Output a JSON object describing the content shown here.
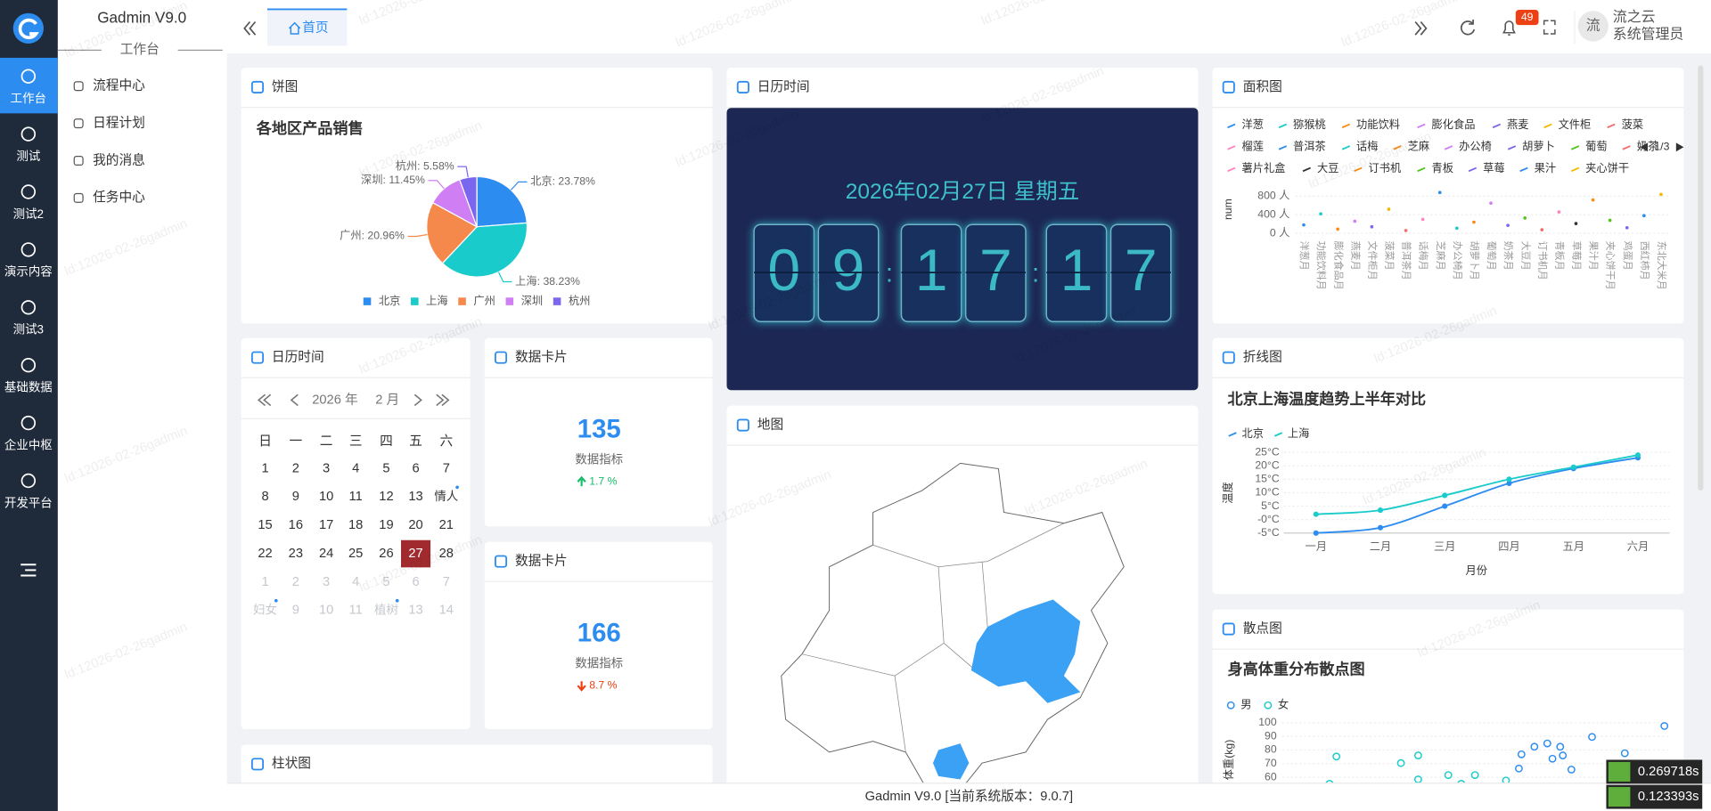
{
  "sidebar": {
    "nav": [
      "工作台",
      "测试",
      "测试2",
      "演示内容",
      "测试3",
      "基础数据",
      "企业中枢",
      "开发平台"
    ]
  },
  "menu": {
    "title": "Gadmin V9.0",
    "section": "工作台",
    "items": [
      "流程中心",
      "日程计划",
      "我的消息",
      "任务中心"
    ]
  },
  "header": {
    "tab": "首页",
    "badge": 49,
    "avatar": "流",
    "user_name": "流之云",
    "user_role": "系统管理员"
  },
  "watermark": "ld:12026-02-26gadmin",
  "panels": {
    "pie": "饼图",
    "clock": "日历时间",
    "area": "面积图",
    "calendar": "日历时间",
    "card1": "数据卡片",
    "card2": "数据卡片",
    "line": "折线图",
    "map": "地图",
    "scatter": "散点图",
    "bar": "柱状图"
  },
  "clock": {
    "date": "2026年02月27日 星期五",
    "digits": [
      "0",
      "9",
      "1",
      "7",
      "1",
      "7"
    ],
    "separator": ":"
  },
  "calendar": {
    "year": "2026 年",
    "month": "2 月",
    "weekdays": [
      "日",
      "一",
      "二",
      "三",
      "四",
      "五",
      "六"
    ],
    "weeks": [
      [
        "1",
        "2",
        "3",
        "4",
        "5",
        "6",
        "7"
      ],
      [
        "8",
        "9",
        "10",
        "11",
        "12",
        "13",
        "情人"
      ],
      [
        "15",
        "16",
        "17",
        "18",
        "19",
        "20",
        "21"
      ],
      [
        "22",
        "23",
        "24",
        "25",
        "26",
        "27",
        "28"
      ],
      [
        "1",
        "2",
        "3",
        "4",
        "5",
        "6",
        "7"
      ],
      [
        "妇女",
        "9",
        "10",
        "11",
        "植树",
        "13",
        "14"
      ]
    ]
  },
  "cards": [
    {
      "value": 135,
      "label": "数据指标",
      "change": "1.7 %",
      "trend": "up"
    },
    {
      "value": 166,
      "label": "数据指标",
      "change": "8.7 %",
      "trend": "down"
    }
  ],
  "chart_data": [
    {
      "type": "pie",
      "title": "各地区产品销售",
      "categories": [
        "北京",
        "上海",
        "广州",
        "深圳",
        "杭州"
      ],
      "values": [
        23.78,
        38.23,
        20.96,
        11.45,
        5.58
      ],
      "value_labels": [
        "北京: 23.78%",
        "上海: 38.23%",
        "广州: 20.96%",
        "深圳: 11.45%",
        "杭州: 5.58%"
      ],
      "colors": [
        "#2d8cf0",
        "#19cbcb",
        "#f5894b",
        "#d07ef3",
        "#7b67ee"
      ]
    },
    {
      "type": "area",
      "legend_page": "1/3",
      "ylabel": "num",
      "ylim": [
        0,
        900
      ],
      "yticks": [
        {
          "value": 0,
          "label": "0 人"
        },
        {
          "value": 400,
          "label": "400 人"
        },
        {
          "value": 800,
          "label": "800 人"
        }
      ],
      "grid": true,
      "categories": [
        "洋葱月",
        "功能饮料月",
        "膨化食品月",
        "燕麦月",
        "文件柜月",
        "菠菜月",
        "普洱茶月",
        "话梅月",
        "芝麻月",
        "办公椅月",
        "胡萝卜月",
        "葡萄月",
        "奶茶月",
        "大豆月",
        "订书机月",
        "青板月",
        "草莓月",
        "果汁月",
        "夹心饼干月",
        "鸡蛋月",
        "西红柿月",
        "东北大米月"
      ],
      "series": [
        {
          "name": "洋葱",
          "color": "#2d8cf0",
          "values": [
            180,
            null,
            null,
            null,
            null,
            null,
            null,
            null,
            null,
            null,
            null,
            null,
            null,
            null,
            null,
            null,
            null,
            null,
            null,
            null,
            null,
            null
          ]
        },
        {
          "name": "猕猴桃",
          "color": "#19cbcb",
          "values": [
            null,
            420,
            null,
            null,
            null,
            null,
            null,
            null,
            null,
            null,
            null,
            null,
            null,
            null,
            null,
            null,
            null,
            null,
            null,
            null,
            null,
            null
          ]
        },
        {
          "name": "功能饮料",
          "color": "#fa8c16",
          "values": [
            null,
            null,
            90,
            null,
            null,
            null,
            null,
            null,
            null,
            null,
            null,
            null,
            null,
            null,
            null,
            null,
            null,
            null,
            null,
            null,
            null,
            null
          ]
        },
        {
          "name": "膨化食品",
          "color": "#d07ef3",
          "values": [
            null,
            null,
            null,
            260,
            null,
            null,
            null,
            null,
            null,
            null,
            null,
            null,
            null,
            null,
            null,
            null,
            null,
            null,
            null,
            null,
            null,
            null
          ]
        },
        {
          "name": "燕麦",
          "color": "#7b67ee",
          "values": [
            null,
            null,
            null,
            null,
            140,
            null,
            null,
            null,
            null,
            null,
            null,
            null,
            null,
            null,
            null,
            null,
            null,
            null,
            null,
            null,
            null,
            null
          ]
        },
        {
          "name": "文件柜",
          "color": "#f5b800",
          "values": [
            null,
            null,
            null,
            null,
            null,
            520,
            null,
            null,
            null,
            null,
            null,
            null,
            null,
            null,
            null,
            null,
            null,
            null,
            null,
            null,
            null,
            null
          ]
        },
        {
          "name": "菠菜",
          "color": "#f56c6c",
          "values": [
            null,
            null,
            null,
            null,
            null,
            null,
            60,
            null,
            null,
            null,
            null,
            null,
            null,
            null,
            null,
            null,
            null,
            null,
            null,
            null,
            null,
            null
          ]
        },
        {
          "name": "榴莲",
          "color": "#ff85c0",
          "values": [
            null,
            null,
            null,
            null,
            null,
            null,
            null,
            300,
            null,
            null,
            null,
            null,
            null,
            null,
            null,
            null,
            null,
            null,
            null,
            null,
            null,
            null
          ]
        },
        {
          "name": "普洱茶",
          "color": "#2d8cf0",
          "values": [
            null,
            null,
            null,
            null,
            null,
            null,
            null,
            null,
            880,
            null,
            null,
            null,
            null,
            null,
            null,
            null,
            null,
            null,
            null,
            null,
            null,
            null
          ]
        },
        {
          "name": "话梅",
          "color": "#19cbcb",
          "values": [
            null,
            null,
            null,
            null,
            null,
            null,
            null,
            null,
            null,
            110,
            null,
            null,
            null,
            null,
            null,
            null,
            null,
            null,
            null,
            null,
            null,
            null
          ]
        },
        {
          "name": "芝麻",
          "color": "#fa8c16",
          "values": [
            null,
            null,
            null,
            null,
            null,
            null,
            null,
            null,
            null,
            null,
            240,
            null,
            null,
            null,
            null,
            null,
            null,
            null,
            null,
            null,
            null,
            null
          ]
        },
        {
          "name": "办公椅",
          "color": "#d07ef3",
          "values": [
            null,
            null,
            null,
            null,
            null,
            null,
            null,
            null,
            null,
            null,
            null,
            650,
            null,
            null,
            null,
            null,
            null,
            null,
            null,
            null,
            null,
            null
          ]
        },
        {
          "name": "胡萝卜",
          "color": "#7b67ee",
          "values": [
            null,
            null,
            null,
            null,
            null,
            null,
            null,
            null,
            null,
            null,
            null,
            null,
            170,
            null,
            null,
            null,
            null,
            null,
            null,
            null,
            null,
            null
          ]
        },
        {
          "name": "葡萄",
          "color": "#52c41a",
          "values": [
            null,
            null,
            null,
            null,
            null,
            null,
            null,
            null,
            null,
            null,
            null,
            null,
            null,
            330,
            null,
            null,
            null,
            null,
            null,
            null,
            null,
            null
          ]
        },
        {
          "name": "奶茶",
          "color": "#f56c6c",
          "values": [
            null,
            null,
            null,
            null,
            null,
            null,
            null,
            null,
            null,
            null,
            null,
            null,
            null,
            null,
            75,
            null,
            null,
            null,
            null,
            null,
            null,
            null
          ]
        },
        {
          "name": "薯片礼盒",
          "color": "#ff85c0",
          "values": [
            null,
            null,
            null,
            null,
            null,
            null,
            null,
            null,
            null,
            null,
            null,
            null,
            null,
            null,
            null,
            460,
            null,
            null,
            null,
            null,
            null,
            null
          ]
        },
        {
          "name": "大豆",
          "color": "#333333",
          "values": [
            null,
            null,
            null,
            null,
            null,
            null,
            null,
            null,
            null,
            null,
            null,
            null,
            null,
            null,
            null,
            null,
            210,
            null,
            null,
            null,
            null,
            null
          ]
        },
        {
          "name": "订书机",
          "color": "#fa8c16",
          "values": [
            null,
            null,
            null,
            null,
            null,
            null,
            null,
            null,
            null,
            null,
            null,
            null,
            null,
            null,
            null,
            null,
            null,
            720,
            null,
            null,
            null,
            null
          ]
        },
        {
          "name": "青板",
          "color": "#52c41a",
          "values": [
            null,
            null,
            null,
            null,
            null,
            null,
            null,
            null,
            null,
            null,
            null,
            null,
            null,
            null,
            null,
            null,
            null,
            null,
            280,
            null,
            null,
            null
          ]
        },
        {
          "name": "草莓",
          "color": "#7b67ee",
          "values": [
            null,
            null,
            null,
            null,
            null,
            null,
            null,
            null,
            null,
            null,
            null,
            null,
            null,
            null,
            null,
            null,
            null,
            null,
            null,
            120,
            null,
            null
          ]
        },
        {
          "name": "果汁",
          "color": "#2d8cf0",
          "values": [
            null,
            null,
            null,
            null,
            null,
            null,
            null,
            null,
            null,
            null,
            null,
            null,
            null,
            null,
            null,
            null,
            null,
            null,
            null,
            null,
            380,
            null
          ]
        },
        {
          "name": "夹心饼干",
          "color": "#f5b800",
          "values": [
            null,
            null,
            null,
            null,
            null,
            null,
            null,
            null,
            null,
            null,
            null,
            null,
            null,
            null,
            null,
            null,
            null,
            null,
            null,
            null,
            null,
            840
          ]
        }
      ]
    },
    {
      "type": "line",
      "title": "北京上海温度趋势上半年对比",
      "categories": [
        "一月",
        "二月",
        "三月",
        "四月",
        "五月",
        "六月"
      ],
      "xlabel": "月份",
      "ylabel": "温度",
      "ylim": [
        -5,
        25
      ],
      "grid": true,
      "yticks": [
        {
          "value": -5,
          "label": "-5°C"
        },
        {
          "value": 0,
          "label": "-0°C"
        },
        {
          "value": 5,
          "label": "5°C"
        },
        {
          "value": 10,
          "label": "10°C"
        },
        {
          "value": 15,
          "label": "15°C"
        },
        {
          "value": 20,
          "label": "20°C"
        },
        {
          "value": 25,
          "label": "25°C"
        }
      ],
      "series": [
        {
          "name": "北京",
          "color": "#2d8cf0",
          "values": [
            -5,
            -3,
            5,
            13.5,
            19,
            23
          ]
        },
        {
          "name": "上海",
          "color": "#19cbcb",
          "values": [
            2,
            3.5,
            9,
            15,
            19.5,
            24
          ]
        }
      ]
    },
    {
      "type": "scatter",
      "title": "身高体重分布散点图",
      "ylabel": "体重(kg)",
      "xlim": [
        150,
        195
      ],
      "ylim": [
        50,
        105
      ],
      "yticks": [
        60,
        70,
        80,
        90,
        100
      ],
      "grid": true,
      "series": [
        {
          "name": "男",
          "color": "#2d8cf0",
          "x": [
            177.5,
            177.8,
            179.3,
            180.8,
            181.4,
            182.3,
            182.6,
            183.6,
            186,
            189.8,
            194.4
          ],
          "values": [
            66.4,
            76.8,
            82.4,
            84.8,
            73.6,
            82.4,
            76,
            65.6,
            89.6,
            77.6,
            97.6
          ]
        },
        {
          "name": "女",
          "color": "#19cbcb",
          "x": [
            156.3,
            155.5,
            163.8,
            165.8,
            165.8,
            169.3,
            170.8,
            172.4,
            176
          ],
          "values": [
            75.2,
            55.2,
            70.4,
            76,
            58.4,
            61.6,
            55.2,
            61.6,
            57.6
          ]
        }
      ]
    }
  ],
  "footer": "Gadmin V9.0 [当前系统版本：9.0.7]",
  "timings": [
    "0.269718s",
    "0.123393s"
  ]
}
